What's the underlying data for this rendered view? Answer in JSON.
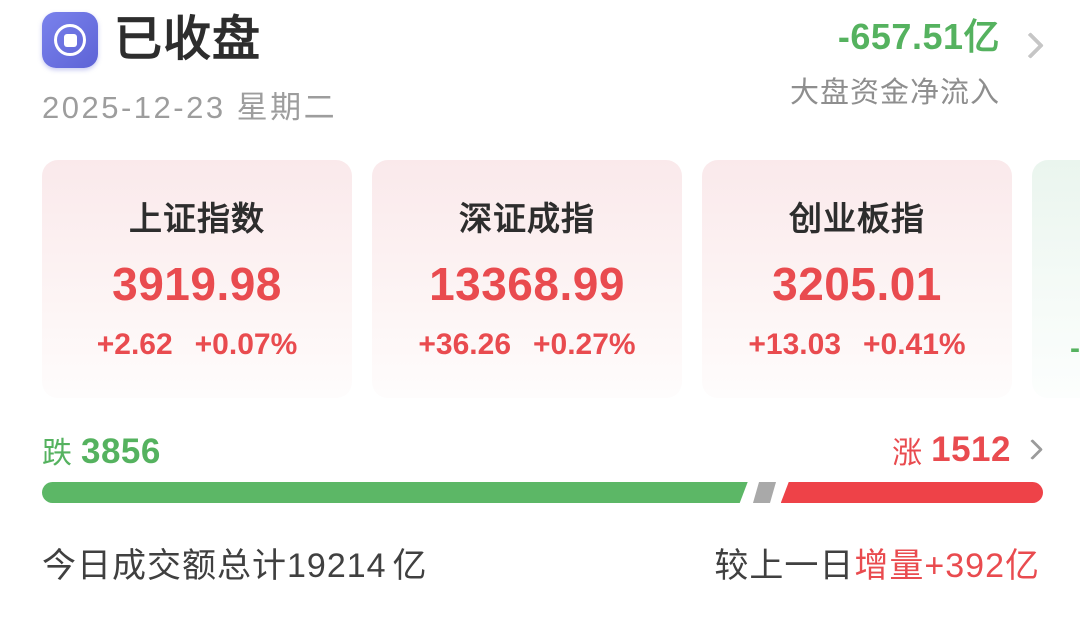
{
  "header": {
    "market_status": "已收盘",
    "date": "2025-12-23 星期二",
    "net_inflow": {
      "value": "-657.51亿",
      "label": "大盘资金净流入"
    }
  },
  "index_cards": [
    {
      "name": "上证指数",
      "value": "3919.98",
      "change": "+2.62",
      "change_pct": "+0.07%"
    },
    {
      "name": "深证成指",
      "value": "13368.99",
      "change": "+36.26",
      "change_pct": "+0.27%"
    },
    {
      "name": "创业板指",
      "value": "3205.01",
      "change": "+13.03",
      "change_pct": "+0.41%"
    },
    {
      "change_fragment": "-"
    }
  ],
  "market_breadth": {
    "down_label": "跌",
    "down_count": "3856",
    "up_label": "涨",
    "up_count": "1512",
    "bar": {
      "down_width_pct": 70.5,
      "flat_left_pct": 71.3,
      "flat_width_pct": 1.7,
      "up_left_pct": 73.8
    }
  },
  "turnover": {
    "today_prefix": "今日成交额总计",
    "today_value": "19214",
    "today_unit": "亿",
    "compare_prefix": "较上一日",
    "compare_highlight": "增量+392亿"
  },
  "colors": {
    "up_red": "#e94b4f",
    "down_green": "#55b25f",
    "bar_red": "#ee4248",
    "bar_green": "#5cb766",
    "bar_flat_gray": "#a9a9a9",
    "accent_indigo": "#6b72e0"
  }
}
